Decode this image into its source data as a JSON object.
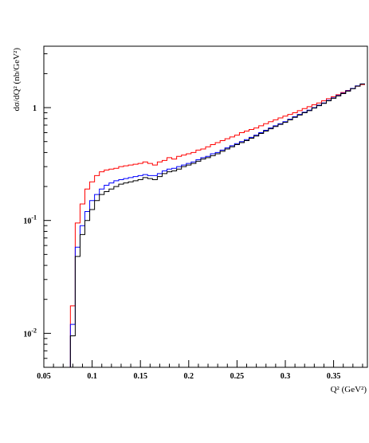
{
  "chart_data": {
    "type": "line",
    "step": true,
    "title": "",
    "xlabel": "Q² (GeV²)",
    "ylabel": "dσ/dQ² (nb/GeV²)",
    "xlim": [
      0.05,
      0.385
    ],
    "ylim": [
      0.005,
      3.5
    ],
    "yscale": "log",
    "grid": false,
    "x_ticks": [
      {
        "value": 0.05,
        "label": "0.05"
      },
      {
        "value": 0.1,
        "label": "0.1"
      },
      {
        "value": 0.15,
        "label": "0.15"
      },
      {
        "value": 0.2,
        "label": "0.2"
      },
      {
        "value": 0.25,
        "label": "0.25"
      },
      {
        "value": 0.3,
        "label": "0.3"
      },
      {
        "value": 0.35,
        "label": "0.35"
      }
    ],
    "y_ticks": [
      {
        "value": 0.01,
        "base": "10",
        "exp": "-2"
      },
      {
        "value": 0.1,
        "base": "10",
        "exp": "-1"
      },
      {
        "value": 1,
        "base": "1",
        "exp": ""
      }
    ],
    "bin_edges": [
      0.0725,
      0.0775,
      0.0825,
      0.0875,
      0.0925,
      0.0975,
      0.1025,
      0.1075,
      0.1125,
      0.1175,
      0.1225,
      0.1275,
      0.1325,
      0.1375,
      0.1425,
      0.1475,
      0.1525,
      0.1575,
      0.1625,
      0.1675,
      0.1725,
      0.1775,
      0.1825,
      0.1875,
      0.1925,
      0.1975,
      0.2025,
      0.2075,
      0.2125,
      0.2175,
      0.2225,
      0.2275,
      0.2325,
      0.2375,
      0.2425,
      0.2475,
      0.2525,
      0.2575,
      0.2625,
      0.2675,
      0.2725,
      0.2775,
      0.2825,
      0.2875,
      0.2925,
      0.2975,
      0.3025,
      0.3075,
      0.3125,
      0.3175,
      0.3225,
      0.3275,
      0.3325,
      0.3375,
      0.3425,
      0.3475,
      0.3525,
      0.3575,
      0.3625,
      0.3675,
      0.3725,
      0.3775,
      0.3825
    ],
    "series": [
      {
        "color": "#ff0000",
        "values": [
          0.0045,
          0.0175,
          0.095,
          0.14,
          0.19,
          0.22,
          0.25,
          0.27,
          0.28,
          0.285,
          0.29,
          0.3,
          0.305,
          0.31,
          0.315,
          0.32,
          0.33,
          0.32,
          0.31,
          0.33,
          0.34,
          0.36,
          0.35,
          0.37,
          0.38,
          0.39,
          0.4,
          0.42,
          0.43,
          0.45,
          0.47,
          0.49,
          0.51,
          0.53,
          0.55,
          0.57,
          0.6,
          0.62,
          0.64,
          0.66,
          0.69,
          0.72,
          0.75,
          0.78,
          0.81,
          0.84,
          0.87,
          0.9,
          0.94,
          0.98,
          1.02,
          1.06,
          1.1,
          1.15,
          1.2,
          1.25,
          1.3,
          1.36,
          1.42,
          1.48,
          1.55,
          1.6
        ]
      },
      {
        "color": "#0000ff",
        "values": [
          0.0045,
          0.012,
          0.058,
          0.09,
          0.12,
          0.15,
          0.17,
          0.19,
          0.205,
          0.215,
          0.225,
          0.23,
          0.235,
          0.24,
          0.245,
          0.25,
          0.255,
          0.25,
          0.25,
          0.26,
          0.275,
          0.285,
          0.29,
          0.3,
          0.31,
          0.32,
          0.33,
          0.345,
          0.36,
          0.37,
          0.39,
          0.4,
          0.42,
          0.44,
          0.46,
          0.48,
          0.5,
          0.52,
          0.545,
          0.57,
          0.6,
          0.63,
          0.66,
          0.69,
          0.72,
          0.75,
          0.79,
          0.83,
          0.87,
          0.91,
          0.95,
          1.0,
          1.05,
          1.1,
          1.16,
          1.22,
          1.28,
          1.34,
          1.41,
          1.48,
          1.56,
          1.62
        ]
      },
      {
        "color": "#000000",
        "values": [
          0.0045,
          0.0095,
          0.048,
          0.075,
          0.1,
          0.125,
          0.15,
          0.17,
          0.18,
          0.19,
          0.2,
          0.21,
          0.215,
          0.22,
          0.225,
          0.23,
          0.24,
          0.235,
          0.23,
          0.245,
          0.26,
          0.27,
          0.275,
          0.285,
          0.3,
          0.31,
          0.32,
          0.335,
          0.35,
          0.36,
          0.375,
          0.39,
          0.41,
          0.43,
          0.45,
          0.47,
          0.49,
          0.51,
          0.535,
          0.56,
          0.59,
          0.62,
          0.65,
          0.68,
          0.71,
          0.74,
          0.78,
          0.82,
          0.86,
          0.9,
          0.94,
          0.99,
          1.04,
          1.09,
          1.15,
          1.21,
          1.27,
          1.33,
          1.4,
          1.47,
          1.55,
          1.62
        ]
      }
    ]
  }
}
